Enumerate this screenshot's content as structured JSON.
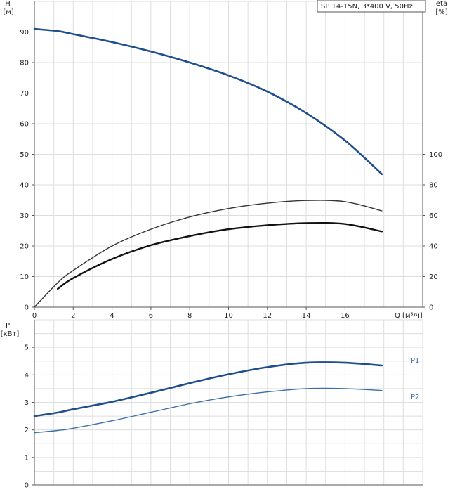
{
  "chart_data": [
    {
      "type": "line",
      "title": "SP 14-15N, 3*400 V, 50Hz",
      "xlabel": "Q [м³/ч]",
      "x_ticks": [
        0,
        2,
        4,
        6,
        8,
        10,
        12,
        14,
        16
      ],
      "xlim": [
        0,
        20
      ],
      "ylabel_top": "H",
      "ylabel_bottom": "[м]",
      "ylim": [
        0,
        100
      ],
      "y_ticks": [
        0,
        10,
        20,
        30,
        40,
        50,
        60,
        70,
        80,
        90
      ],
      "y2label_top": "eta",
      "y2label_bottom": "[%]",
      "y2lim": [
        0,
        200
      ],
      "y2_ticks": [
        0,
        20,
        40,
        60,
        80,
        100
      ],
      "grid": true,
      "series": [
        {
          "axis": "y",
          "color": "#1f4e8c",
          "x": [
            0,
            1.2,
            2,
            4,
            6,
            8,
            10,
            12,
            14,
            16,
            17.9
          ],
          "values": [
            91,
            90.3,
            89.3,
            86.7,
            83.6,
            80,
            75.8,
            70.5,
            63.5,
            54.5,
            43.5
          ]
        },
        {
          "axis": "y2",
          "color": "#333333",
          "x": [
            0,
            1.2,
            2,
            4,
            6,
            8,
            10,
            12,
            14,
            16,
            17.9
          ],
          "values": [
            0,
            16,
            24,
            40,
            51,
            59,
            64.5,
            68,
            69.8,
            69,
            63
          ]
        },
        {
          "axis": "y2",
          "color": "#111111",
          "x": [
            1.2,
            2,
            4,
            6,
            8,
            10,
            12,
            14,
            16,
            17.9
          ],
          "values": [
            12,
            19,
            31.5,
            40.5,
            46.5,
            51,
            53.6,
            55,
            54.4,
            49.5
          ]
        }
      ]
    },
    {
      "type": "line",
      "xlim": [
        0,
        20
      ],
      "ylabel_top": "P",
      "ylabel_bottom": "[кВт]",
      "ylim": [
        0,
        6
      ],
      "y_ticks": [
        0,
        1,
        2,
        3,
        4,
        5
      ],
      "grid": true,
      "series": [
        {
          "name": "P1",
          "color": "#1f4e8c",
          "x": [
            0,
            1.2,
            2,
            4,
            6,
            8,
            10,
            12,
            14,
            16,
            17.9
          ],
          "values": [
            2.5,
            2.63,
            2.75,
            3.02,
            3.35,
            3.7,
            4.02,
            4.28,
            4.44,
            4.44,
            4.34
          ]
        },
        {
          "name": "P2",
          "color": "#3a6fa8",
          "x": [
            0,
            1.2,
            2,
            4,
            6,
            8,
            10,
            12,
            14,
            16,
            17.9
          ],
          "values": [
            1.9,
            1.98,
            2.06,
            2.33,
            2.64,
            2.95,
            3.2,
            3.38,
            3.5,
            3.5,
            3.43
          ]
        }
      ]
    }
  ]
}
